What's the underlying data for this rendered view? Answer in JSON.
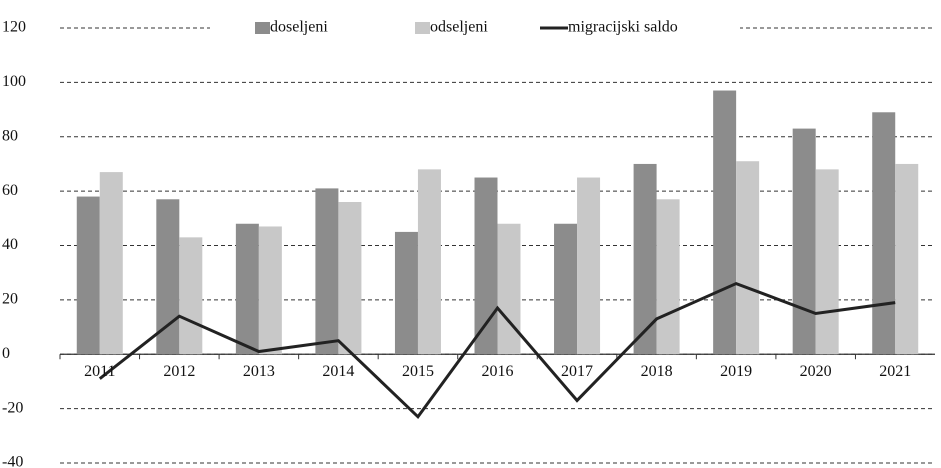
{
  "chart_data": {
    "type": "bar",
    "categories": [
      "2011",
      "2012",
      "2013",
      "2014",
      "2015",
      "2016",
      "2017",
      "2018",
      "2019",
      "2020",
      "2021"
    ],
    "series": [
      {
        "name": "doseljeni",
        "color": "#8c8c8c",
        "values": [
          58,
          57,
          48,
          61,
          45,
          65,
          48,
          70,
          97,
          83,
          89
        ]
      },
      {
        "name": "odseljeni",
        "color": "#c8c8c8",
        "values": [
          67,
          43,
          47,
          56,
          68,
          48,
          65,
          57,
          71,
          68,
          70
        ]
      },
      {
        "name": "migracijski saldo",
        "color": "#222222",
        "type": "line",
        "values": [
          -9,
          14,
          1,
          5,
          -23,
          17,
          -17,
          13,
          26,
          15,
          19
        ]
      }
    ],
    "ylim": [
      -40,
      120
    ],
    "yticks": [
      -40,
      -20,
      0,
      20,
      40,
      60,
      80,
      100,
      120
    ],
    "grid": true,
    "legend": "top"
  }
}
